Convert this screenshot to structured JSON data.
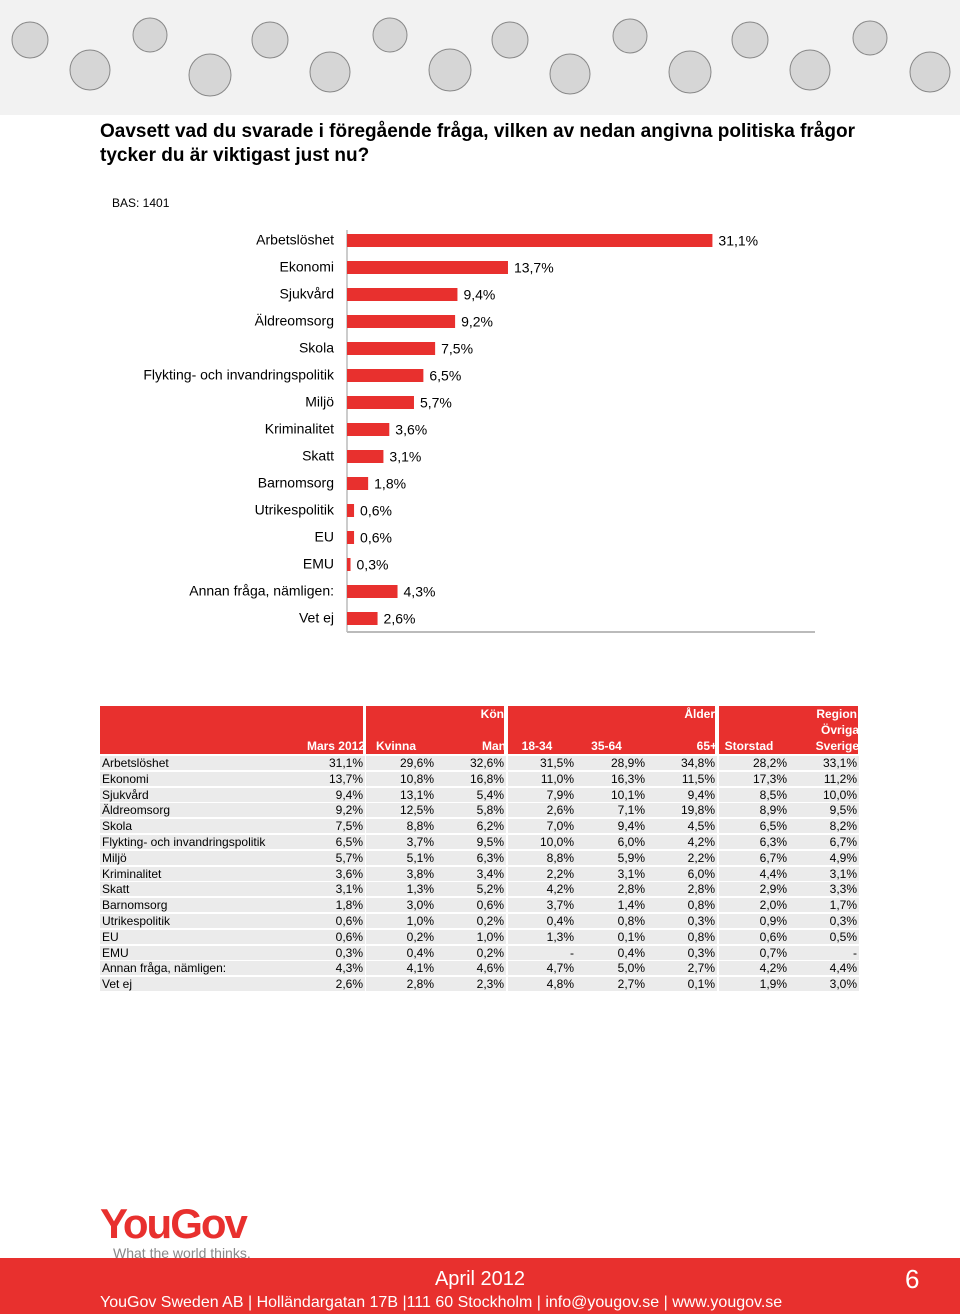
{
  "header": {
    "title": "Oavsett vad du svarade i föregående fråga, vilken av nedan angivna politiska frågor tycker du är viktigast just nu?",
    "base": "BAS: 1401"
  },
  "chart_data": {
    "type": "hbar",
    "color": "#e8302e",
    "categories": [
      "Arbetslöshet",
      "Ekonomi",
      "Sjukvård",
      "Äldreomsorg",
      "Skola",
      "Flykting- och invandringspolitik",
      "Miljö",
      "Kriminalitet",
      "Skatt",
      "Barnomsorg",
      "Utrikespolitik",
      "EU",
      "EMU",
      "Annan fråga, nämligen:",
      "Vet ej"
    ],
    "values": [
      31.1,
      13.7,
      9.4,
      9.2,
      7.5,
      6.5,
      5.7,
      3.6,
      3.1,
      1.8,
      0.6,
      0.6,
      0.3,
      4.3,
      2.6
    ],
    "value_labels": [
      "31,1%",
      "13,7%",
      "9,4%",
      "9,2%",
      "7,5%",
      "6,5%",
      "5,7%",
      "3,6%",
      "3,1%",
      "1,8%",
      "0,6%",
      "0,6%",
      "0,3%",
      "4,3%",
      "2,6%"
    ]
  },
  "table": {
    "groups": [
      "Kön",
      "Ålder",
      "Region"
    ],
    "columns": [
      "Mars 2012",
      "Kvinna",
      "Man",
      "18-34",
      "35-64",
      "65+",
      "Storstad",
      "Övriga Sverige"
    ],
    "rows": [
      [
        "Arbetslöshet",
        "31,1%",
        "29,6%",
        "32,6%",
        "31,5%",
        "28,9%",
        "34,8%",
        "28,2%",
        "33,1%"
      ],
      [
        "Ekonomi",
        "13,7%",
        "10,8%",
        "16,8%",
        "11,0%",
        "16,3%",
        "11,5%",
        "17,3%",
        "11,2%"
      ],
      [
        "Sjukvård",
        "9,4%",
        "13,1%",
        "5,4%",
        "7,9%",
        "10,1%",
        "9,4%",
        "8,5%",
        "10,0%"
      ],
      [
        "Äldreomsorg",
        "9,2%",
        "12,5%",
        "5,8%",
        "2,6%",
        "7,1%",
        "19,8%",
        "8,9%",
        "9,5%"
      ],
      [
        "Skola",
        "7,5%",
        "8,8%",
        "6,2%",
        "7,0%",
        "9,4%",
        "4,5%",
        "6,5%",
        "8,2%"
      ],
      [
        "Flykting- och invandringspolitik",
        "6,5%",
        "3,7%",
        "9,5%",
        "10,0%",
        "6,0%",
        "4,2%",
        "6,3%",
        "6,7%"
      ],
      [
        "Miljö",
        "5,7%",
        "5,1%",
        "6,3%",
        "8,8%",
        "5,9%",
        "2,2%",
        "6,7%",
        "4,9%"
      ],
      [
        "Kriminalitet",
        "3,6%",
        "3,8%",
        "3,4%",
        "2,2%",
        "3,1%",
        "6,0%",
        "4,4%",
        "3,1%"
      ],
      [
        "Skatt",
        "3,1%",
        "1,3%",
        "5,2%",
        "4,2%",
        "2,8%",
        "2,8%",
        "2,9%",
        "3,3%"
      ],
      [
        "Barnomsorg",
        "1,8%",
        "3,0%",
        "0,6%",
        "3,7%",
        "1,4%",
        "0,8%",
        "2,0%",
        "1,7%"
      ],
      [
        "Utrikespolitik",
        "0,6%",
        "1,0%",
        "0,2%",
        "0,4%",
        "0,8%",
        "0,3%",
        "0,9%",
        "0,3%"
      ],
      [
        "EU",
        "0,6%",
        "0,2%",
        "1,0%",
        "1,3%",
        "0,1%",
        "0,8%",
        "0,6%",
        "0,5%"
      ],
      [
        "EMU",
        "0,3%",
        "0,4%",
        "0,2%",
        "-",
        "0,4%",
        "0,3%",
        "0,7%",
        "-"
      ],
      [
        "Annan fråga, nämligen:",
        "4,3%",
        "4,1%",
        "4,6%",
        "4,7%",
        "5,0%",
        "2,7%",
        "4,2%",
        "4,4%"
      ],
      [
        "Vet ej",
        "2,6%",
        "2,8%",
        "2,3%",
        "4,8%",
        "2,7%",
        "0,1%",
        "1,9%",
        "3,0%"
      ]
    ]
  },
  "footer": {
    "logo": "YouGov",
    "tagline": "What the world thinks.",
    "date": "April 2012",
    "page": "6",
    "address": "YouGov Sweden AB | Holländargatan 17B |111 60 Stockholm | info@yougov.se | www.yougov.se"
  }
}
